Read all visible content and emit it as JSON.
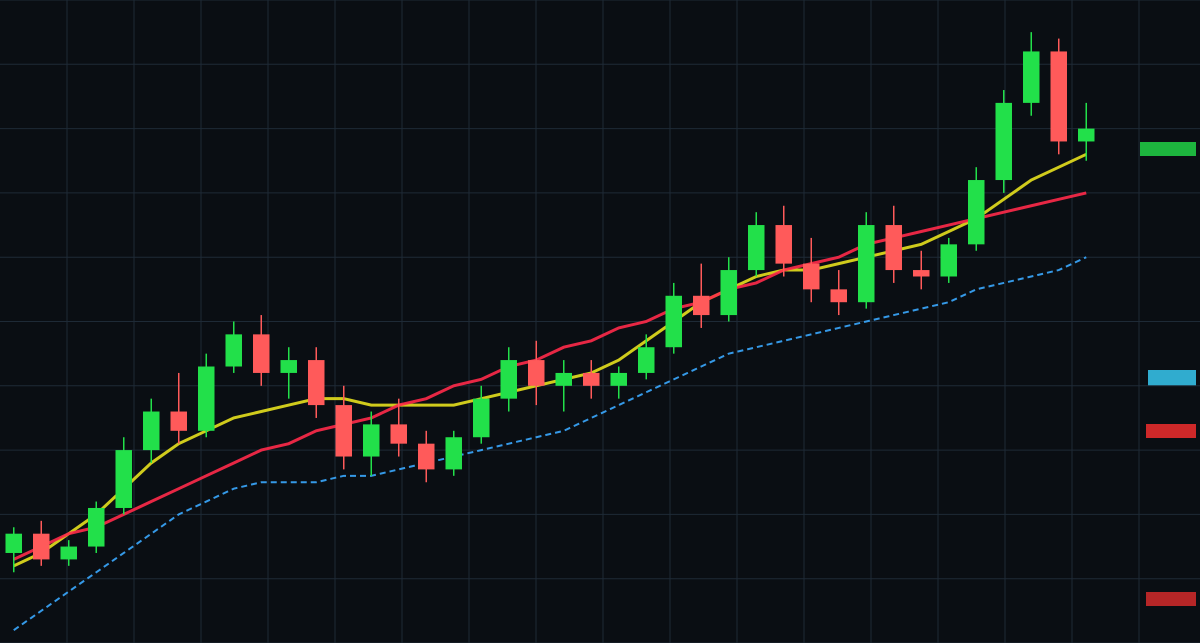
{
  "chart_data": {
    "type": "candlestick",
    "categories": [
      null,
      null,
      null,
      null,
      null,
      null,
      null,
      null,
      null,
      null,
      null,
      null,
      null,
      null,
      null,
      null,
      null,
      null,
      null,
      null,
      null,
      null,
      null,
      null,
      null,
      null,
      null,
      null,
      null,
      null,
      null,
      null,
      null,
      null,
      null,
      null,
      null,
      null,
      null,
      null
    ],
    "open": [
      14,
      17,
      13,
      15,
      21,
      30,
      36,
      33,
      43,
      48,
      42,
      44,
      37,
      29,
      34,
      31,
      27,
      32,
      38,
      44,
      40,
      42,
      40,
      42,
      46,
      54,
      51,
      58,
      65,
      59,
      55,
      53,
      65,
      58,
      57,
      62,
      72,
      84,
      92,
      78
    ],
    "high": [
      18,
      19,
      16,
      22,
      32,
      38,
      42,
      45,
      50,
      51,
      46,
      46,
      40,
      36,
      38,
      33,
      33,
      40,
      46,
      47,
      44,
      44,
      43,
      48,
      56,
      59,
      60,
      67,
      68,
      63,
      58,
      67,
      68,
      61,
      63,
      74,
      86,
      95,
      94,
      84
    ],
    "low": [
      11,
      12,
      12,
      14,
      20,
      28,
      31,
      32,
      42,
      40,
      38,
      35,
      27,
      26,
      29,
      25,
      26,
      31,
      36,
      37,
      36,
      38,
      38,
      41,
      45,
      49,
      50,
      57,
      57,
      53,
      51,
      52,
      56,
      55,
      56,
      61,
      70,
      82,
      76,
      75
    ],
    "close": [
      17,
      13,
      15,
      21,
      30,
      36,
      33,
      43,
      48,
      42,
      44,
      37,
      29,
      34,
      31,
      27,
      32,
      38,
      44,
      40,
      42,
      40,
      42,
      46,
      54,
      51,
      58,
      65,
      59,
      55,
      53,
      65,
      58,
      57,
      62,
      72,
      84,
      92,
      78,
      80
    ],
    "up_color": "#22e04a",
    "down_color": "#ff5a5a",
    "series": [
      {
        "color": "#e6e01e",
        "style": "solid",
        "values": [
          12,
          14,
          17,
          20,
          24,
          28,
          31,
          33,
          35,
          36,
          37,
          38,
          38,
          37,
          37,
          37,
          37,
          38,
          39,
          40,
          41,
          42,
          44,
          47,
          50,
          53,
          55,
          57,
          58,
          58,
          59,
          60,
          61,
          62,
          64,
          66,
          69,
          72,
          74,
          76
        ]
      },
      {
        "color": "#ff2a4a",
        "style": "solid",
        "values": [
          13,
          15,
          17,
          18,
          20,
          22,
          24,
          26,
          28,
          30,
          31,
          33,
          34,
          35,
          37,
          38,
          40,
          41,
          43,
          44,
          46,
          47,
          49,
          50,
          52,
          53,
          55,
          56,
          58,
          59,
          60,
          62,
          63,
          64,
          65,
          66,
          67,
          68,
          69,
          70
        ]
      },
      {
        "color": "#3aa8ff",
        "style": "dashed",
        "values": [
          2,
          5,
          8,
          11,
          14,
          17,
          20,
          22,
          24,
          25,
          25,
          25,
          26,
          26,
          27,
          28,
          29,
          30,
          31,
          32,
          33,
          35,
          37,
          39,
          41,
          43,
          45,
          46,
          47,
          48,
          49,
          50,
          51,
          52,
          53,
          55,
          56,
          57,
          58,
          60
        ]
      }
    ],
    "ylim": [
      0,
      100
    ],
    "yticks": [
      0,
      10,
      20,
      30,
      40,
      50,
      60,
      70,
      80,
      90,
      100
    ],
    "grid": true
  }
}
